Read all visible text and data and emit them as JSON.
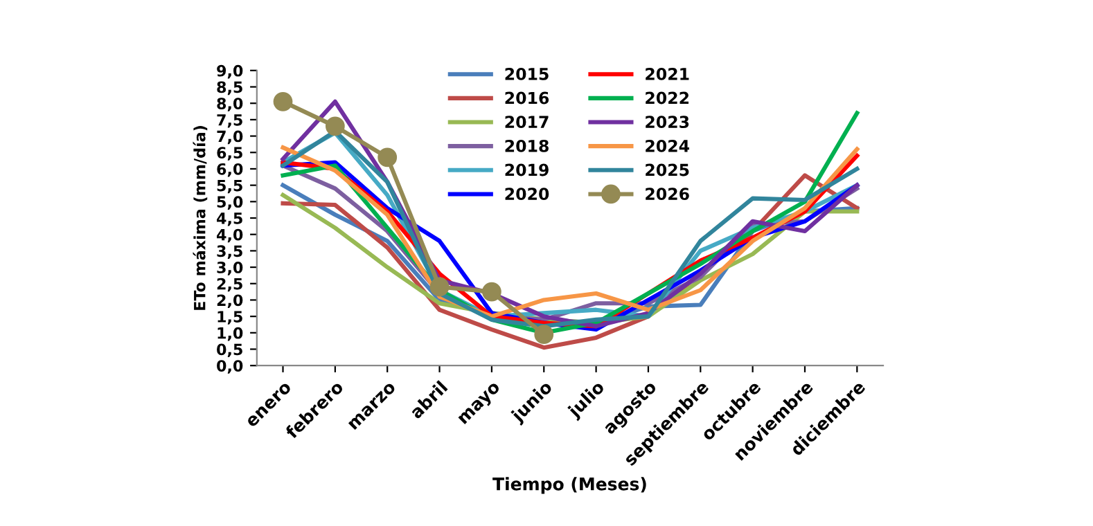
{
  "chart_data": {
    "type": "line",
    "xlabel": "Tiempo (Meses)",
    "ylabel": "ETo máxima (mm/día)",
    "categories": [
      "enero",
      "febrero",
      "marzo",
      "abril",
      "mayo",
      "junio",
      "julio",
      "agosto",
      "septiembre",
      "octubre",
      "noviembre",
      "diciembre"
    ],
    "ylim": [
      0,
      9
    ],
    "yticks": [
      {
        "value": 0,
        "label": "0,0"
      },
      {
        "value": 0.5,
        "label": "0,5"
      },
      {
        "value": 1,
        "label": "1,0"
      },
      {
        "value": 1.5,
        "label": "1,5"
      },
      {
        "value": 2,
        "label": "2,0"
      },
      {
        "value": 2.5,
        "label": "2,5"
      },
      {
        "value": 3,
        "label": "3,0"
      },
      {
        "value": 3.5,
        "label": "3,5"
      },
      {
        "value": 4,
        "label": "4,0"
      },
      {
        "value": 4.5,
        "label": "4,5"
      },
      {
        "value": 5,
        "label": "5,0"
      },
      {
        "value": 5.5,
        "label": "5,5"
      },
      {
        "value": 6,
        "label": "6,0"
      },
      {
        "value": 6.5,
        "label": "6,5"
      },
      {
        "value": 7,
        "label": "7,0"
      },
      {
        "value": 7.5,
        "label": "7,5"
      },
      {
        "value": 8,
        "label": "8,0"
      },
      {
        "value": 8.5,
        "label": "8,5"
      },
      {
        "value": 9,
        "label": "9,0"
      }
    ],
    "grid": false,
    "legend": "top",
    "marker": "none",
    "series": [
      {
        "name": "2015",
        "color": "#4a7ebb",
        "values": [
          5.5,
          4.6,
          3.8,
          2.0,
          1.6,
          1.4,
          1.3,
          1.8,
          1.85,
          4.1,
          4.7,
          4.8
        ]
      },
      {
        "name": "2016",
        "color": "#be4b48",
        "values": [
          4.95,
          4.9,
          3.6,
          1.7,
          1.1,
          0.55,
          0.85,
          1.5,
          2.8,
          4.1,
          5.8,
          4.8
        ]
      },
      {
        "name": "2017",
        "color": "#98b954",
        "values": [
          5.2,
          4.2,
          3.0,
          1.9,
          1.6,
          1.4,
          1.3,
          1.5,
          2.6,
          3.4,
          4.7,
          4.7
        ]
      },
      {
        "name": "2018",
        "color": "#7d5fa0",
        "values": [
          6.1,
          5.4,
          4.1,
          2.2,
          1.5,
          1.4,
          1.9,
          1.9,
          2.7,
          4.3,
          4.4,
          5.4
        ]
      },
      {
        "name": "2019",
        "color": "#46aac5",
        "values": [
          6.2,
          7.1,
          5.2,
          2.3,
          1.5,
          1.6,
          1.7,
          1.5,
          3.5,
          4.2,
          4.7,
          5.5
        ]
      },
      {
        "name": "2020",
        "color": "#0000ff",
        "values": [
          6.1,
          6.2,
          4.8,
          3.8,
          1.6,
          1.3,
          1.1,
          2.0,
          2.9,
          3.9,
          4.4,
          5.5
        ]
      },
      {
        "name": "2021",
        "color": "#ff0000",
        "values": [
          6.2,
          6.0,
          4.7,
          2.8,
          1.5,
          1.3,
          1.2,
          2.2,
          3.2,
          3.9,
          4.7,
          6.4
        ]
      },
      {
        "name": "2022",
        "color": "#00b050",
        "values": [
          5.8,
          6.1,
          4.2,
          2.3,
          1.4,
          1.0,
          1.3,
          2.2,
          3.1,
          4.1,
          5.0,
          7.7
        ]
      },
      {
        "name": "2023",
        "color": "#7030a0",
        "values": [
          6.3,
          8.05,
          5.6,
          2.6,
          2.2,
          1.5,
          1.2,
          1.6,
          2.8,
          4.4,
          4.1,
          5.5
        ]
      },
      {
        "name": "2024",
        "color": "#f79646",
        "values": [
          6.65,
          5.95,
          4.6,
          2.1,
          1.5,
          2.0,
          2.2,
          1.7,
          2.3,
          3.8,
          4.8,
          6.6
        ]
      },
      {
        "name": "2025",
        "color": "#31859c",
        "values": [
          6.1,
          7.15,
          5.6,
          2.2,
          1.4,
          1.2,
          1.4,
          1.5,
          3.8,
          5.1,
          5.05,
          6.0
        ]
      },
      {
        "name": "2026",
        "color": "#948a54",
        "marker": "circle",
        "values": [
          8.05,
          7.3,
          6.35,
          2.4,
          2.25,
          0.95,
          null,
          null,
          null,
          null,
          null,
          null
        ]
      }
    ]
  }
}
